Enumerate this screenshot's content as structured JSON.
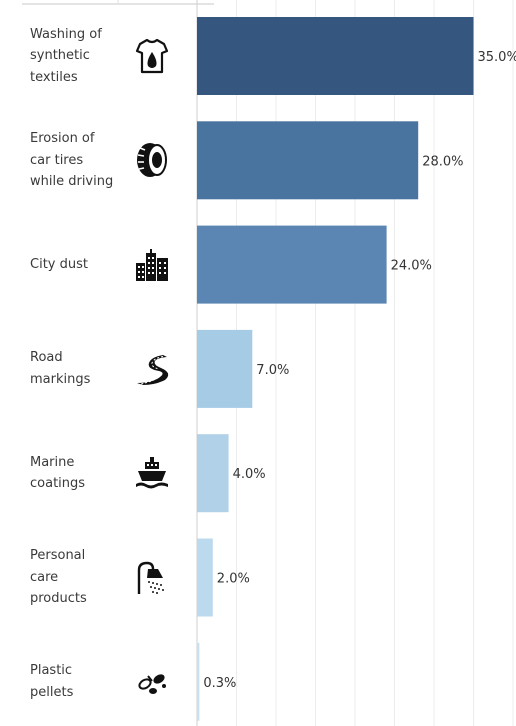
{
  "chart_data": {
    "type": "bar",
    "orientation": "horizontal",
    "categories": [
      "Washing of synthetic textiles",
      "Erosion of car tires while driving",
      "City dust",
      "Road markings",
      "Marine coatings",
      "Personal care products",
      "Plastic pellets"
    ],
    "category_lines": [
      [
        "Washing of",
        "synthetic",
        "textiles"
      ],
      [
        "Erosion of",
        "car tires",
        "while driving"
      ],
      [
        "City dust"
      ],
      [
        "Road",
        "markings"
      ],
      [
        "Marine",
        "coatings"
      ],
      [
        "Personal",
        "care",
        "products"
      ],
      [
        "Plastic",
        "pellets"
      ]
    ],
    "values": [
      35.0,
      28.0,
      24.0,
      7.0,
      4.0,
      2.0,
      0.3
    ],
    "value_labels": [
      "35.0%",
      "28.0%",
      "24.0%",
      "7.0%",
      "4.0%",
      "2.0%",
      "0.3%"
    ],
    "icons": [
      "tshirt-icon",
      "tire-icon",
      "city-buildings-icon",
      "road-icon",
      "ship-icon",
      "shower-icon",
      "pellets-icon"
    ],
    "colors": [
      "#34567f",
      "#4a74a0",
      "#5b85b2",
      "#a6cbe5",
      "#b0d1e8",
      "#bcdaee",
      "#c8e2f2"
    ],
    "title": "",
    "xlabel": "",
    "ylabel": "",
    "xlim": [
      0,
      40
    ],
    "grid": true
  }
}
